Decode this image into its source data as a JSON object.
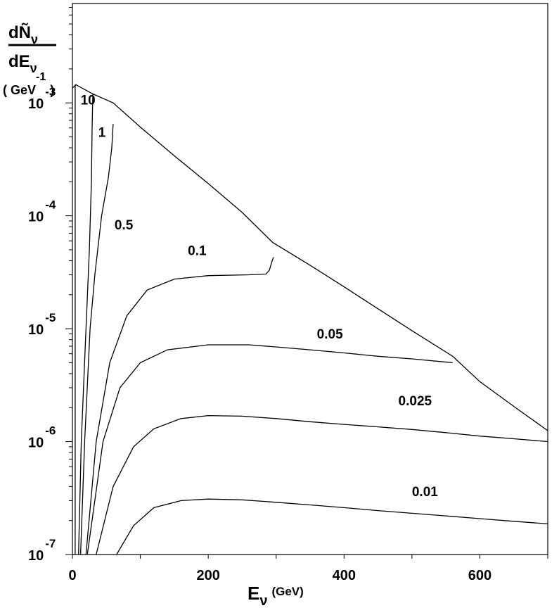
{
  "chart_data": {
    "type": "line",
    "yscale": "log",
    "xlim": [
      0,
      700
    ],
    "ylim_exponents": [
      -7,
      -2.12
    ],
    "x_ticks": [
      "0",
      "200",
      "400",
      "600"
    ],
    "y_ticks": [
      {
        "base": "10",
        "exp": "-3"
      },
      {
        "base": "10",
        "exp": "-4"
      },
      {
        "base": "10",
        "exp": "-5"
      },
      {
        "base": "10",
        "exp": "-6"
      },
      {
        "base": "10",
        "exp": "-7"
      }
    ],
    "y_label": {
      "top": "dÑ",
      "top_sub": "ν",
      "bottom": "dE",
      "bottom_sub": "ν",
      "unit": "( GeV",
      "unit_exp": "-1",
      "unit_close": ")"
    },
    "x_label": {
      "main": "E",
      "sub": "ν",
      "unit": "(GeV)"
    },
    "envelope": {
      "x": [
        0,
        5,
        30,
        60,
        100,
        150,
        200,
        250,
        295,
        350,
        400,
        450,
        500,
        560,
        600,
        650,
        700
      ],
      "y": [
        0.00135,
        0.00145,
        0.0012,
        0.001,
        0.00061,
        0.00034,
        0.000193,
        0.000107,
        5.8e-05,
        3.65e-05,
        2.35e-05,
        1.5e-05,
        9.6e-06,
        5.7e-06,
        3.4e-06,
        2.05e-06,
        1.25e-06
      ]
    },
    "series": [
      {
        "name": "10",
        "label_at": [
          12,
          0.00097
        ],
        "x": [
          4,
          4,
          4,
          4
        ],
        "y": [
          1e-07,
          1e-05,
          0.001,
          0.00145
        ]
      },
      {
        "name": "1",
        "label_at": [
          38,
          0.0005
        ],
        "x": [
          9,
          13,
          20,
          25,
          28,
          29,
          30
        ],
        "y": [
          1e-07,
          1e-06,
          1e-05,
          5e-05,
          0.0002,
          0.0006,
          0.0012
        ]
      },
      {
        "name": "0.5",
        "label_at": [
          62,
          7.6e-05
        ],
        "x": [
          12,
          18,
          26,
          33,
          43,
          53,
          58,
          60
        ],
        "y": [
          1e-07,
          1e-06,
          1e-05,
          3e-05,
          0.0001,
          0.00022,
          0.0004,
          0.00065
        ]
      },
      {
        "name": "0.1",
        "label_at": [
          170,
          4.5e-05
        ],
        "x": [
          20,
          35,
          55,
          80,
          110,
          150,
          200,
          260,
          285,
          290,
          293,
          296
        ],
        "y": [
          1e-07,
          1e-06,
          5e-06,
          1.3e-05,
          2.2e-05,
          2.75e-05,
          2.95e-05,
          3e-05,
          3.05e-05,
          3.3e-05,
          3.8e-05,
          4.3e-05
        ]
      },
      {
        "name": "0.05",
        "label_at": [
          360,
          8.2e-06
        ],
        "x": [
          22,
          45,
          70,
          100,
          140,
          200,
          260,
          300,
          350,
          400,
          450,
          500,
          560
        ],
        "y": [
          1e-07,
          1e-06,
          3e-06,
          5e-06,
          6.5e-06,
          7.2e-06,
          7.2e-06,
          6.9e-06,
          6.5e-06,
          6.1e-06,
          5.7e-06,
          5.4e-06,
          5e-06
        ]
      },
      {
        "name": "0.025",
        "label_at": [
          480,
          2.1e-06
        ],
        "x": [
          35,
          60,
          90,
          120,
          160,
          200,
          250,
          300,
          350,
          400,
          450,
          500,
          550,
          600,
          650,
          700
        ],
        "y": [
          1e-07,
          4e-07,
          9e-07,
          1.3e-06,
          1.6e-06,
          1.7e-06,
          1.68e-06,
          1.6e-06,
          1.5e-06,
          1.42e-06,
          1.35e-06,
          1.28e-06,
          1.2e-06,
          1.12e-06,
          1.06e-06,
          1e-06
        ]
      },
      {
        "name": "0.01",
        "label_at": [
          500,
          3.3e-07
        ],
        "x": [
          65,
          90,
          120,
          160,
          200,
          250,
          300,
          350,
          400,
          450,
          500,
          550,
          600,
          650,
          700
        ],
        "y": [
          1e-07,
          1.8e-07,
          2.6e-07,
          3e-07,
          3.1e-07,
          3.05e-07,
          2.9e-07,
          2.75e-07,
          2.6e-07,
          2.45e-07,
          2.32e-07,
          2.2e-07,
          2.08e-07,
          1.97e-07,
          1.87e-07
        ]
      }
    ]
  }
}
